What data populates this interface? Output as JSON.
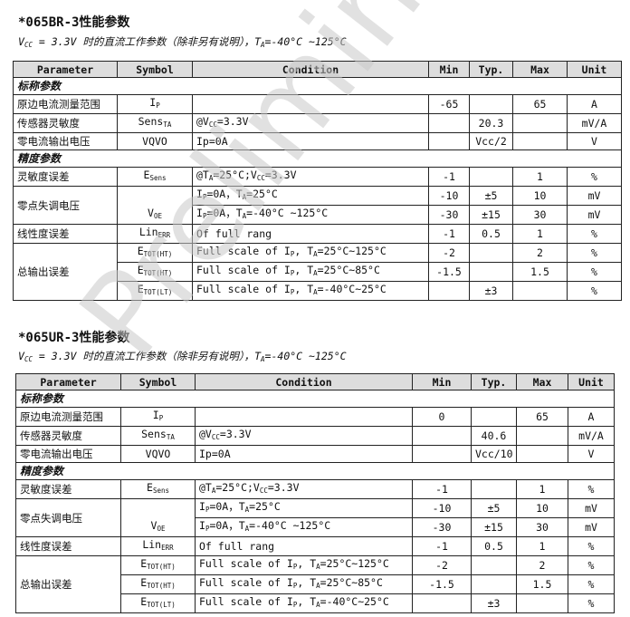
{
  "watermark": "Preliminary",
  "headers": [
    "Parameter",
    "Symbol",
    "Condition",
    "Min",
    "Typ.",
    "Max",
    "Unit"
  ],
  "tables": [
    {
      "title": "*065BR-3性能参数",
      "subtitle": {
        "prefix": "V",
        "prefix_sub": "CC",
        "text": " = 3.3V 时的直流工作参数（除非另有说明），T",
        "ta_sub": "A",
        "suffix": "=-40°C ~125°C"
      },
      "sections": [
        {
          "name": "标称参数",
          "rows": [
            {
              "param": "原边电流测量范围",
              "symbol": [
                [
                  "I",
                  ""
                ],
                [
                  "P",
                  "sub"
                ]
              ],
              "cond": [],
              "min": "-65",
              "typ": "",
              "max": "65",
              "unit": "A"
            },
            {
              "param": "传感器灵敏度",
              "symbol": [
                [
                  "Sens",
                  ""
                ],
                [
                  "TA",
                  "sub"
                ]
              ],
              "cond": [
                [
                  "@V",
                  ""
                ],
                [
                  "CC",
                  "sub"
                ],
                [
                  "=3.3V",
                  ""
                ]
              ],
              "min": "",
              "typ": "20.3",
              "max": "",
              "unit": "mV/A"
            },
            {
              "param": "零电流输出电压",
              "symbol": [
                [
                  "V",
                  ""
                ],
                [
                  "QVO",
                  ""
                ]
              ],
              "cond": [
                [
                  "Ip=0A",
                  ""
                ]
              ],
              "min": "",
              "typ": "Vcc/2",
              "max": "",
              "unit": "V"
            }
          ]
        },
        {
          "name": "精度参数",
          "rows": [
            {
              "param": "灵敏度误差",
              "symbol": [
                [
                  "E",
                  ""
                ],
                [
                  "Sens",
                  "sub"
                ]
              ],
              "cond": [
                [
                  "@T",
                  ""
                ],
                [
                  "A",
                  "sub"
                ],
                [
                  "=25°C;V",
                  ""
                ],
                [
                  "CC",
                  "sub"
                ],
                [
                  "=3.3V",
                  ""
                ]
              ],
              "min": "-1",
              "typ": "",
              "max": "1",
              "unit": "%"
            },
            {
              "param": "零点失调电压",
              "rowspan": 2,
              "symbol": [
                [
                  "V",
                  ""
                ],
                [
                  "OE",
                  "sub"
                ]
              ],
              "cond": [
                [
                  "I",
                  ""
                ],
                [
                  "P",
                  "sub"
                ],
                [
                  "=0A，T",
                  ""
                ],
                [
                  "A",
                  "sub"
                ],
                [
                  "=25°C",
                  ""
                ]
              ],
              "min": "-10",
              "typ": "±5",
              "max": "10",
              "unit": "mV"
            },
            {
              "cond": [
                [
                  "I",
                  ""
                ],
                [
                  "P",
                  "sub"
                ],
                [
                  "=0A，T",
                  ""
                ],
                [
                  "A",
                  "sub"
                ],
                [
                  "=-40°C ~125°C",
                  ""
                ]
              ],
              "min": "-30",
              "typ": "±15",
              "max": "30",
              "unit": "mV"
            },
            {
              "param": "线性度误差",
              "symbol": [
                [
                  "Lin",
                  ""
                ],
                [
                  "ERR",
                  "sub"
                ]
              ],
              "cond": [
                [
                  "Of full rang",
                  ""
                ]
              ],
              "min": "-1",
              "typ": "0.5",
              "max": "1",
              "unit": "%"
            },
            {
              "param": "总输出误差",
              "rowspan": 3,
              "symbol": [
                [
                  "E",
                  ""
                ],
                [
                  "TOT(HT)",
                  "sub"
                ]
              ],
              "cond": [
                [
                  "Full scale of I",
                  ""
                ],
                [
                  "P",
                  "sub"
                ],
                [
                  ", T",
                  ""
                ],
                [
                  "A",
                  "sub"
                ],
                [
                  "=25°C~125°C",
                  ""
                ]
              ],
              "min": "-2",
              "typ": "",
              "max": "2",
              "unit": "%"
            },
            {
              "symbol": [
                [
                  "E",
                  ""
                ],
                [
                  "TOT(HT)",
                  "sub"
                ]
              ],
              "cond": [
                [
                  "Full scale of I",
                  ""
                ],
                [
                  "P",
                  "sub"
                ],
                [
                  ", T",
                  ""
                ],
                [
                  "A",
                  "sub"
                ],
                [
                  "=25°C~85°C",
                  ""
                ]
              ],
              "min": "-1.5",
              "typ": "",
              "max": "1.5",
              "unit": "%"
            },
            {
              "symbol": [
                [
                  "E",
                  ""
                ],
                [
                  "TOT(LT)",
                  "sub"
                ]
              ],
              "cond": [
                [
                  "Full scale of I",
                  ""
                ],
                [
                  "P",
                  "sub"
                ],
                [
                  ", T",
                  ""
                ],
                [
                  "A",
                  "sub"
                ],
                [
                  "=-40°C~25°C",
                  ""
                ]
              ],
              "min": "",
              "typ": "±3",
              "max": "",
              "unit": "%"
            }
          ]
        }
      ]
    },
    {
      "title": "*065UR-3性能参数",
      "subtitle": {
        "prefix": "V",
        "prefix_sub": "CC",
        "text": " = 3.3V 时的直流工作参数（除非另有说明），T",
        "ta_sub": "A",
        "suffix": "=-40°C ~125°C"
      },
      "sections": [
        {
          "name": "标称参数",
          "rows": [
            {
              "param": "原边电流测量范围",
              "symbol": [
                [
                  "I",
                  ""
                ],
                [
                  "P",
                  "sub"
                ]
              ],
              "cond": [],
              "min": "0",
              "typ": "",
              "max": "65",
              "unit": "A"
            },
            {
              "param": "传感器灵敏度",
              "symbol": [
                [
                  "Sens",
                  ""
                ],
                [
                  "TA",
                  "sub"
                ]
              ],
              "cond": [
                [
                  "@V",
                  ""
                ],
                [
                  "CC",
                  "sub"
                ],
                [
                  "=3.3V",
                  ""
                ]
              ],
              "min": "",
              "typ": "40.6",
              "max": "",
              "unit": "mV/A"
            },
            {
              "param": "零电流输出电压",
              "symbol": [
                [
                  "V",
                  ""
                ],
                [
                  "QVO",
                  ""
                ]
              ],
              "cond": [
                [
                  "Ip=0A",
                  ""
                ]
              ],
              "min": "",
              "typ": "Vcc/10",
              "max": "",
              "unit": "V"
            }
          ]
        },
        {
          "name": "精度参数",
          "rows": [
            {
              "param": "灵敏度误差",
              "symbol": [
                [
                  "E",
                  ""
                ],
                [
                  "Sens",
                  "sub"
                ]
              ],
              "cond": [
                [
                  "@T",
                  ""
                ],
                [
                  "A",
                  "sub"
                ],
                [
                  "=25°C;V",
                  ""
                ],
                [
                  "CC",
                  "sub"
                ],
                [
                  "=3.3V",
                  ""
                ]
              ],
              "min": "-1",
              "typ": "",
              "max": "1",
              "unit": "%"
            },
            {
              "param": "零点失调电压",
              "rowspan": 2,
              "symbol": [
                [
                  "V",
                  ""
                ],
                [
                  "OE",
                  "sub"
                ]
              ],
              "cond": [
                [
                  "I",
                  ""
                ],
                [
                  "P",
                  "sub"
                ],
                [
                  "=0A，T",
                  ""
                ],
                [
                  "A",
                  "sub"
                ],
                [
                  "=25°C",
                  ""
                ]
              ],
              "min": "-10",
              "typ": "±5",
              "max": "10",
              "unit": "mV"
            },
            {
              "cond": [
                [
                  "I",
                  ""
                ],
                [
                  "P",
                  "sub"
                ],
                [
                  "=0A，T",
                  ""
                ],
                [
                  "A",
                  "sub"
                ],
                [
                  "=-40°C ~125°C",
                  ""
                ]
              ],
              "min": "-30",
              "typ": "±15",
              "max": "30",
              "unit": "mV"
            },
            {
              "param": "线性度误差",
              "symbol": [
                [
                  "Lin",
                  ""
                ],
                [
                  "ERR",
                  "sub"
                ]
              ],
              "cond": [
                [
                  "Of full rang",
                  ""
                ]
              ],
              "min": "-1",
              "typ": "0.5",
              "max": "1",
              "unit": "%"
            },
            {
              "param": "总输出误差",
              "rowspan": 3,
              "symbol": [
                [
                  "E",
                  ""
                ],
                [
                  "TOT(HT)",
                  "sub"
                ]
              ],
              "cond": [
                [
                  "Full scale of I",
                  ""
                ],
                [
                  "P",
                  "sub"
                ],
                [
                  ", T",
                  ""
                ],
                [
                  "A",
                  "sub"
                ],
                [
                  "=25°C~125°C",
                  ""
                ]
              ],
              "min": "-2",
              "typ": "",
              "max": "2",
              "unit": "%"
            },
            {
              "symbol": [
                [
                  "E",
                  ""
                ],
                [
                  "TOT(HT)",
                  "sub"
                ]
              ],
              "cond": [
                [
                  "Full scale of I",
                  ""
                ],
                [
                  "P",
                  "sub"
                ],
                [
                  ", T",
                  ""
                ],
                [
                  "A",
                  "sub"
                ],
                [
                  "=25°C~85°C",
                  ""
                ]
              ],
              "min": "-1.5",
              "typ": "",
              "max": "1.5",
              "unit": "%"
            },
            {
              "symbol": [
                [
                  "E",
                  ""
                ],
                [
                  "TOT(LT)",
                  "sub"
                ]
              ],
              "cond": [
                [
                  "Full scale of I",
                  ""
                ],
                [
                  "P",
                  "sub"
                ],
                [
                  ", T",
                  ""
                ],
                [
                  "A",
                  "sub"
                ],
                [
                  "=-40°C~25°C",
                  ""
                ]
              ],
              "min": "",
              "typ": "±3",
              "max": "",
              "unit": "%"
            }
          ]
        }
      ]
    }
  ]
}
